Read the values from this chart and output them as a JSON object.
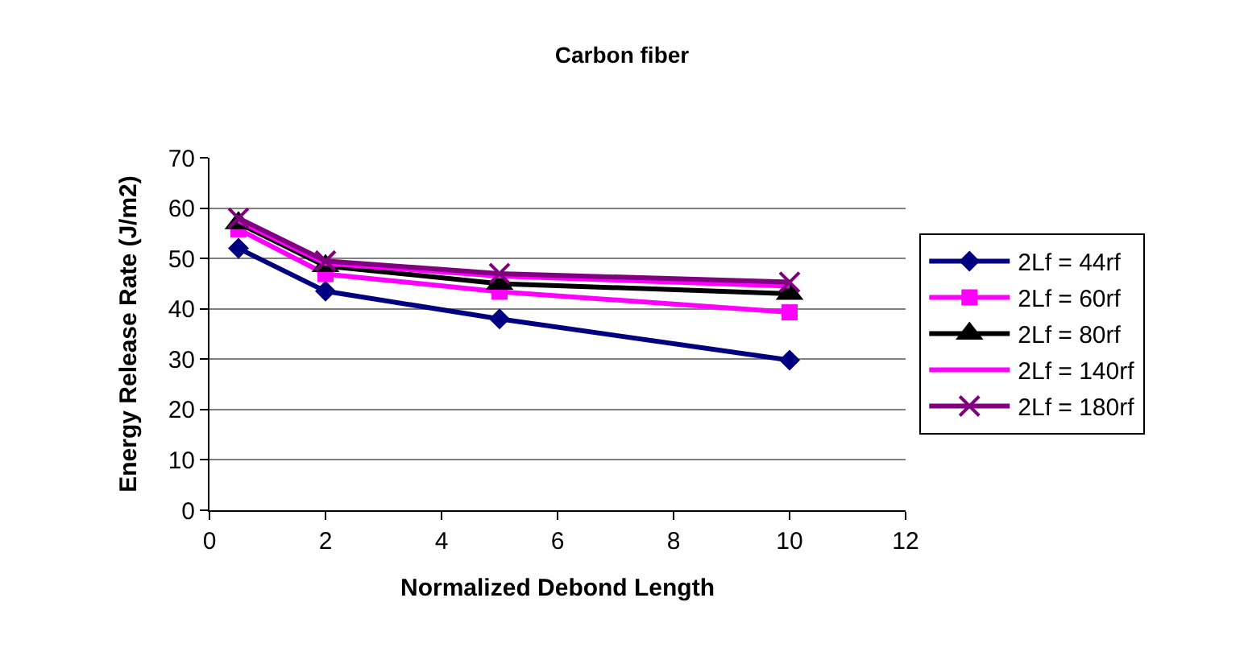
{
  "chart_data": {
    "type": "line",
    "title": "Carbon fiber",
    "xlabel": "Normalized Debond Length",
    "ylabel": "Energy Release Rate (J/m2)",
    "x": [
      0.5,
      2,
      5,
      10
    ],
    "series": [
      {
        "name": "2Lf = 44rf",
        "color": "#000080",
        "marker": "diamond",
        "values": [
          52,
          43.5,
          38,
          29.8
        ]
      },
      {
        "name": "2Lf = 60rf",
        "color": "#ff00ff",
        "marker": "square",
        "values": [
          55.8,
          46.9,
          43.4,
          39.3
        ]
      },
      {
        "name": "2Lf = 80rf",
        "color": "#000000",
        "marker": "triangle",
        "values": [
          57,
          48.5,
          45,
          43
        ]
      },
      {
        "name": "2Lf = 140rf",
        "color": "#ff00ff",
        "marker": "none",
        "values": [
          57.5,
          49,
          46.5,
          44.5
        ]
      },
      {
        "name": "2Lf = 180rf",
        "color": "#800080",
        "marker": "cross",
        "values": [
          58,
          49.5,
          47,
          45.3
        ]
      }
    ],
    "xlim": [
      0,
      12
    ],
    "xticks": [
      0,
      2,
      4,
      6,
      8,
      10,
      12
    ],
    "ylim": [
      0,
      70
    ],
    "yticks": [
      0,
      10,
      20,
      30,
      40,
      50,
      60,
      70
    ],
    "grid": "y",
    "legend": "right"
  }
}
